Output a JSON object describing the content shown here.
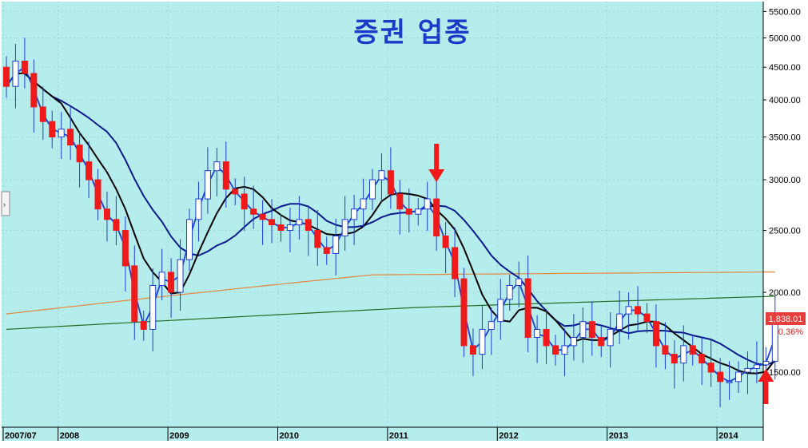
{
  "chart_data": {
    "type": "candlestick",
    "title": "증권 업종",
    "y_scale": "log",
    "ylim": [
      1230,
      5700
    ],
    "y_ticks": [
      "1500.00",
      "2000.00",
      "2500.00",
      "3000.00",
      "3500.00",
      "4000.00",
      "4500.00",
      "5000.00",
      "5500.00"
    ],
    "x_ticks": [
      {
        "label": "2007/07",
        "month": 0
      },
      {
        "label": "2008",
        "month": 6
      },
      {
        "label": "2009",
        "month": 18
      },
      {
        "label": "2010",
        "month": 30
      },
      {
        "label": "2011",
        "month": 42
      },
      {
        "label": "2012",
        "month": 54
      },
      {
        "label": "2013",
        "month": 66
      },
      {
        "label": "2014",
        "month": 78
      }
    ],
    "last_value": "1,838.01",
    "last_change": "0.36%",
    "grid": true,
    "colors": {
      "background": "#b5ecec",
      "panel": "#ffffff",
      "up_candle": "#ffffff",
      "up_outline": "#1f3fd6",
      "down_candle": "#f01a1a",
      "ma5": "#1f3fd6",
      "ma20": "#000000",
      "ma60": "#0b1a8c",
      "ma120": "#e6873b",
      "ma240": "#1f6e1f",
      "annotation": "#f01a1a"
    },
    "monthly_close": [
      4200,
      4600,
      4400,
      3900,
      3700,
      3500,
      3600,
      3400,
      3200,
      3000,
      2700,
      2600,
      2500,
      2200,
      1800,
      1750,
      2050,
      2150,
      2000,
      2250,
      2600,
      2800,
      3100,
      3200,
      2900,
      2850,
      2700,
      2650,
      2600,
      2550,
      2500,
      2550,
      2600,
      2500,
      2350,
      2300,
      2450,
      2600,
      2700,
      2800,
      3000,
      3100,
      2850,
      2700,
      2650,
      2700,
      2800,
      2450,
      2350,
      2100,
      1650,
      1600,
      1750,
      1800,
      1950,
      2050,
      2100,
      1700,
      1750,
      1650,
      1600,
      1650,
      1700,
      1800,
      1700,
      1650,
      1750,
      1850,
      1900,
      1850,
      1800,
      1650,
      1600,
      1550,
      1650,
      1600,
      1550,
      1500,
      1450,
      1450,
      1500,
      1520,
      1540,
      1560,
      1838
    ]
  },
  "annotations": {
    "arrow_2011": {
      "month": 47,
      "direction": "down"
    },
    "arrow_2014": {
      "month": 83,
      "direction": "up"
    }
  },
  "ui": {
    "scroll_handle_icon": "chevron-right-icon"
  }
}
